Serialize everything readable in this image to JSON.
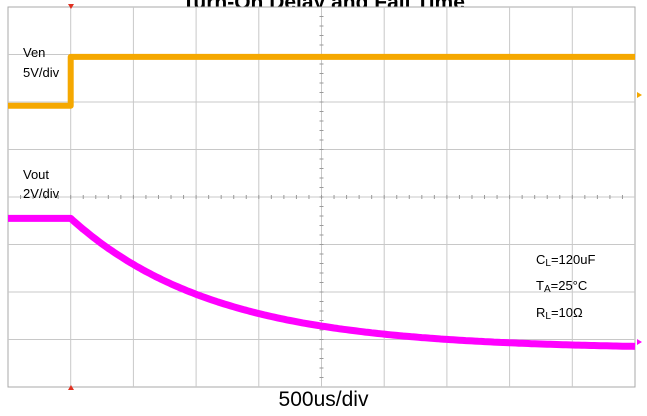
{
  "chart_data": {
    "type": "line",
    "title": "Turn-On Delay and Fall Time",
    "xlabel": "500us/div",
    "grid": true,
    "divisions": {
      "x": 10,
      "y": 8
    },
    "xlim": [
      0,
      5000
    ],
    "x_unit": "us",
    "series": [
      {
        "name": "Ven",
        "scale": "5V/div",
        "color": "#f5a800",
        "x": [
          0,
          500,
          500,
          5000
        ],
        "y_div": [
          5.92,
          5.92,
          6.95,
          6.95
        ]
      },
      {
        "name": "Vout",
        "scale": "2V/div",
        "color": "#ff00ff",
        "x": [
          0,
          500,
          750,
          1000,
          1500,
          2000,
          2500,
          3000,
          3500,
          4000,
          4500,
          5000
        ],
        "y_div": [
          3.55,
          3.55,
          2.95,
          2.48,
          1.83,
          1.43,
          1.18,
          1.02,
          0.92,
          0.86,
          0.82,
          0.8
        ]
      }
    ],
    "annotations": [
      {
        "main": "C",
        "sub": "L",
        "value": "=120uF"
      },
      {
        "main": "T",
        "sub": "A",
        "value": "=25°C"
      },
      {
        "main": "R",
        "sub": "L",
        "value": "=10Ω"
      }
    ]
  }
}
